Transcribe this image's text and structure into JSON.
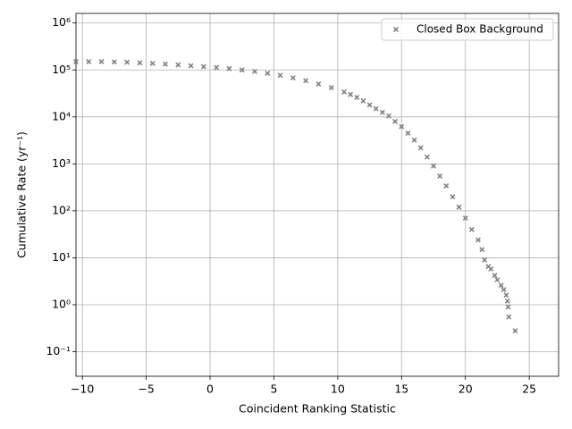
{
  "chart_data": {
    "type": "scatter",
    "xlabel": "Coincident Ranking Statistic",
    "ylabel": "Cumulative Rate (yr⁻¹)",
    "xlim": [
      -10.5,
      27.3
    ],
    "ylim": [
      0.03,
      1600000
    ],
    "xticks": [
      {
        "value": -10,
        "label": "−10"
      },
      {
        "value": -5,
        "label": "−5"
      },
      0,
      5,
      10,
      15,
      20,
      25
    ],
    "yticks": [
      {
        "value": 0.1,
        "label": "10⁻¹"
      },
      {
        "value": 1,
        "label": "10⁰"
      },
      {
        "value": 10,
        "label": "10¹"
      },
      {
        "value": 100,
        "label": "10²"
      },
      {
        "value": 1000,
        "label": "10³"
      },
      {
        "value": 10000,
        "label": "10⁴"
      },
      {
        "value": 100000,
        "label": "10⁵"
      },
      {
        "value": 1000000,
        "label": "10⁶"
      }
    ],
    "ylog": true,
    "grid": true,
    "legend_loc": "upper right",
    "series": [
      {
        "name": "Closed Box Background",
        "color": "#808080",
        "x": [
          -10.5,
          -9.5,
          -8.5,
          -7.5,
          -6.5,
          -5.5,
          -4.5,
          -3.5,
          -2.5,
          -1.5,
          -0.5,
          0.5,
          1.5,
          2.5,
          3.5,
          4.5,
          5.5,
          6.5,
          7.5,
          8.5,
          9.5,
          10.5,
          11,
          11.5,
          12,
          12.5,
          13,
          13.5,
          14,
          14.5,
          15,
          15.5,
          16,
          16.5,
          17,
          17.5,
          18,
          18.5,
          19,
          19.5,
          20,
          20.5,
          21,
          21.3,
          21.5,
          21.8,
          22,
          22.3,
          22.5,
          22.8,
          23,
          23.2,
          23.3,
          23.35,
          23.4,
          23.9
        ],
        "values": [
          150000,
          150000,
          150000,
          148000,
          146000,
          142000,
          138000,
          133000,
          128000,
          123000,
          118000,
          113000,
          107000,
          100000,
          93000,
          85000,
          77000,
          68000,
          59000,
          50000,
          42000,
          34000,
          30000,
          26000,
          22000,
          18000,
          15000,
          12500,
          10500,
          8000,
          6200,
          4500,
          3200,
          2200,
          1400,
          900,
          550,
          340,
          200,
          120,
          70,
          40,
          24,
          15,
          9,
          6.5,
          5.8,
          4.2,
          3.4,
          2.6,
          2.1,
          1.6,
          1.2,
          0.9,
          0.55,
          0.28
        ]
      }
    ]
  }
}
